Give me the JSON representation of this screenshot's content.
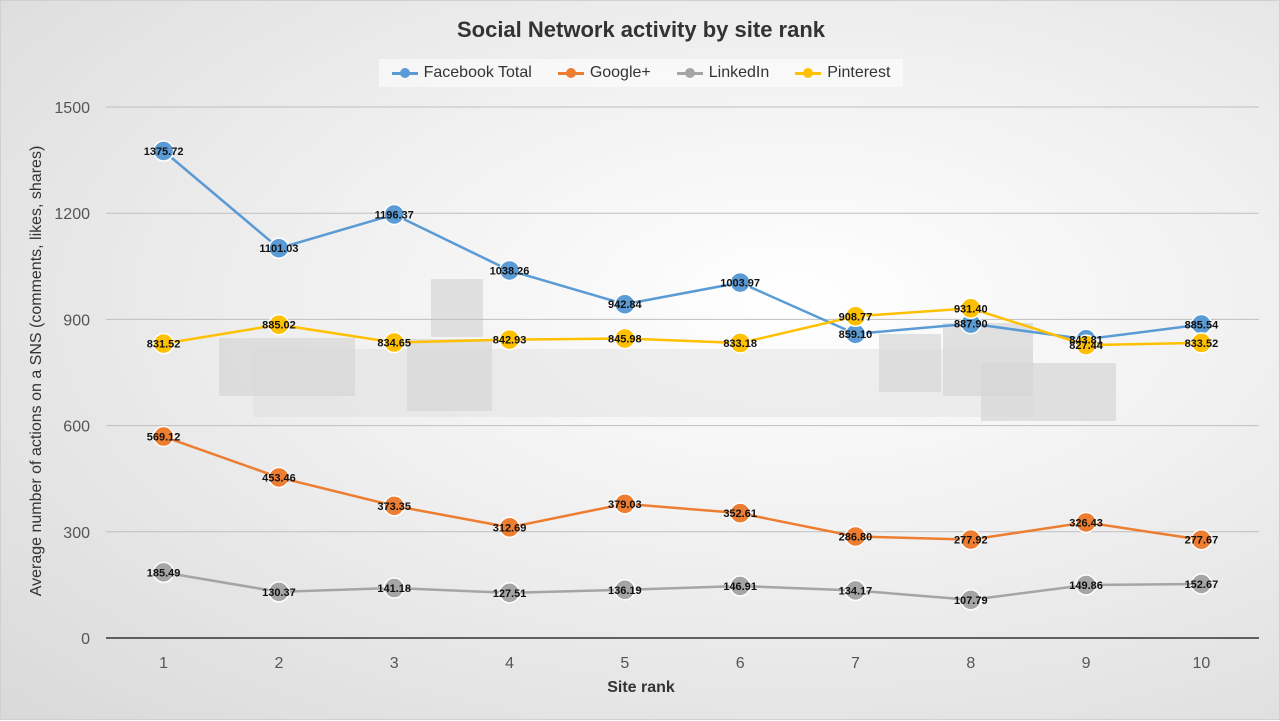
{
  "chart_data": {
    "type": "line",
    "title": "Social Network activity by site rank",
    "xlabel": "Site rank",
    "ylabel": "Average number of actions on a SNS (comments, likes, shares)",
    "x": [
      "1",
      "2",
      "3",
      "4",
      "5",
      "6",
      "7",
      "8",
      "9",
      "10"
    ],
    "ylim": [
      0,
      1500
    ],
    "yticks": [
      "0",
      "300",
      "600",
      "900",
      "1200",
      "1500"
    ],
    "grid": true,
    "legend_position": "top",
    "series": [
      {
        "name": "Facebook Total",
        "color": "#5b9bd5",
        "values": [
          1375.72,
          1101.03,
          1196.37,
          1038.26,
          942.84,
          1003.97,
          859.1,
          887.9,
          843.81,
          885.54
        ],
        "labels": [
          "1375.72",
          "1101.03",
          "1196.37",
          "1038.26",
          "942.84",
          "1003.97",
          "859.10",
          "887.90",
          "843.81",
          "885.54"
        ]
      },
      {
        "name": "Google+",
        "color": "#ed7d31",
        "values": [
          569.12,
          453.46,
          373.35,
          312.69,
          379.03,
          352.61,
          286.8,
          277.92,
          326.43,
          277.67
        ],
        "labels": [
          "569.12",
          "453.46",
          "373.35",
          "312.69",
          "379.03",
          "352.61",
          "286.80",
          "277.92",
          "326.43",
          "277.67"
        ]
      },
      {
        "name": "LinkedIn",
        "color": "#a5a5a5",
        "values": [
          185.49,
          130.37,
          141.18,
          127.51,
          136.19,
          146.91,
          134.17,
          107.79,
          149.86,
          152.67
        ],
        "labels": [
          "185.49",
          "130.37",
          "141.18",
          "127.51",
          "136.19",
          "146.91",
          "134.17",
          "107.79",
          "149.86",
          "152.67"
        ]
      },
      {
        "name": "Pinterest",
        "color": "#ffc000",
        "values": [
          831.52,
          885.02,
          834.65,
          842.93,
          845.98,
          833.18,
          908.77,
          931.4,
          827.44,
          833.52
        ],
        "labels": [
          "831.52",
          "885.02",
          "834.65",
          "842.93",
          "845.98",
          "833.18",
          "908.77",
          "931.40",
          "827.44",
          "833.52"
        ]
      }
    ]
  }
}
